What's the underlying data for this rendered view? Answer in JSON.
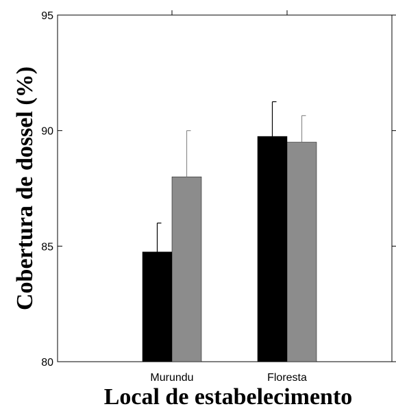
{
  "chart_data": {
    "type": "bar",
    "title": "",
    "xlabel": "Local de estabelecimento",
    "ylabel": "Cobertura de dossel (%)",
    "categories": [
      "Murundu",
      "Floresta"
    ],
    "ylim": [
      80,
      95
    ],
    "yticks": [
      80,
      85,
      90,
      95
    ],
    "grid": false,
    "legend": "none",
    "series": [
      {
        "color": "#000000",
        "values": [
          84.75,
          89.75
        ],
        "errors": [
          1.25,
          1.5
        ]
      },
      {
        "color": "#8c8c8c",
        "values": [
          88.0,
          89.5
        ],
        "errors": [
          2.0,
          1.15
        ]
      }
    ]
  }
}
